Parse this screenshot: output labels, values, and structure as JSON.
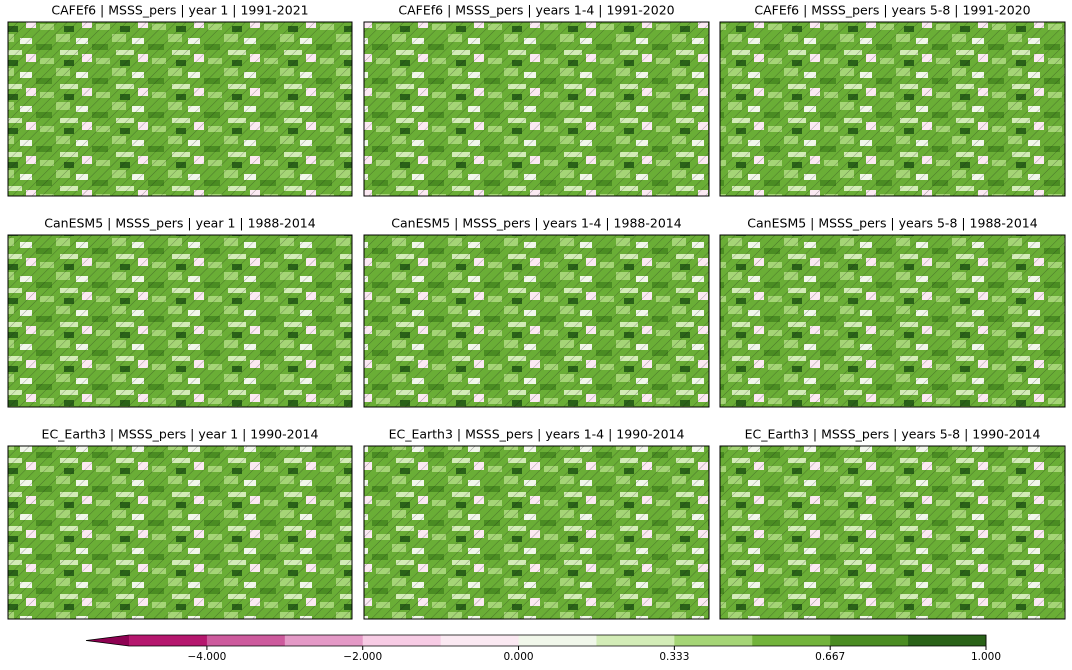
{
  "chart_data": {
    "type": "colorbar",
    "titles": [
      "CAFEf6 | MSSS_pers | year 1 | 1991-2021",
      "CAFEf6 | MSSS_pers | years 1-4 | 1991-2020",
      "CAFEf6 | MSSS_pers | years 5-8 | 1991-2020",
      "CanESM5 | MSSS_pers | year 1 | 1988-2014",
      "CanESM5 | MSSS_pers | years 1-4 | 1988-2014",
      "CanESM5 | MSSS_pers | years 5-8 | 1988-2014",
      "EC_Earth3 | MSSS_pers | year 1 | 1990-2014",
      "EC_Earth3 | MSSS_pers | years 1-4 | 1990-2014",
      "EC_Earth3 | MSSS_pers | years 5-8 | 1990-2014"
    ],
    "levels": [
      -5,
      -4,
      -3,
      -2,
      -1,
      0,
      0.167,
      0.333,
      0.5,
      0.667,
      0.833,
      1
    ],
    "colors": [
      "#b5176e",
      "#cd5a9d",
      "#e499c6",
      "#f7cbe4",
      "#fbe9f2",
      "#f1f7ea",
      "#d3ecb7",
      "#a5d576",
      "#72b33b",
      "#4a8c22",
      "#2a6218"
    ],
    "extend_color": "#8e0152",
    "ticks": [
      {
        "value": -4,
        "label": "−4.000"
      },
      {
        "value": -2,
        "label": "−2.000"
      },
      {
        "value": 0,
        "label": "0.000"
      },
      {
        "value": 0.333,
        "label": "0.333"
      },
      {
        "value": 0.667,
        "label": "0.667"
      },
      {
        "value": 1,
        "label": "1.000"
      }
    ]
  }
}
